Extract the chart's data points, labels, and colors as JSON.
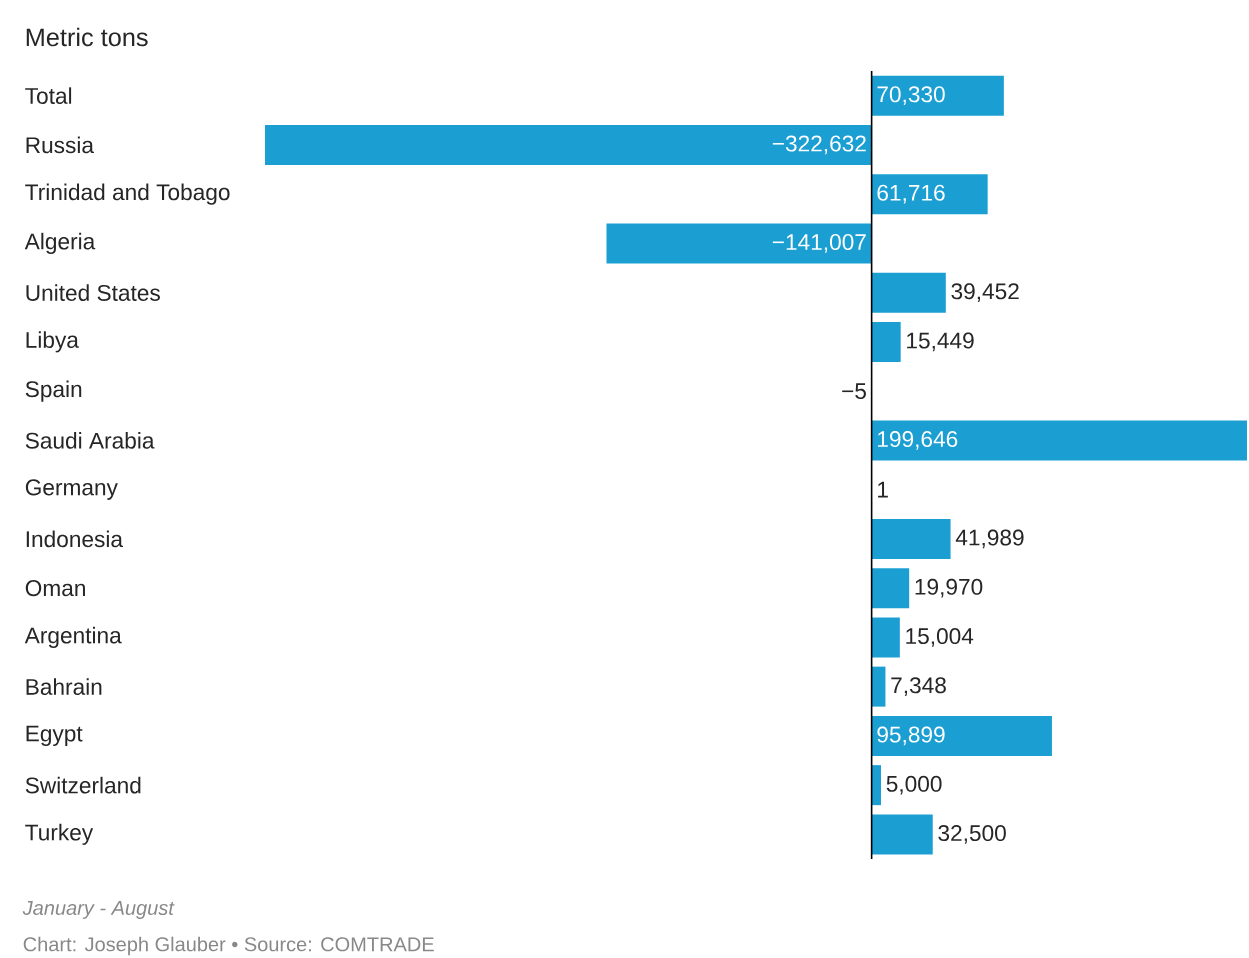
{
  "chart_data": {
    "type": "bar",
    "orientation": "horizontal",
    "title": "Metric tons",
    "categories": [
      "Total",
      "Russia",
      "Trinidad and Tobago",
      "Algeria",
      "United States",
      "Libya",
      "Spain",
      "Saudi Arabia",
      "Germany",
      "Indonesia",
      "Oman",
      "Argentina",
      "Bahrain",
      "Egypt",
      "Switzerland",
      "Turkey"
    ],
    "values": [
      70330,
      -322632,
      61716,
      -141007,
      39452,
      15449,
      -5,
      199646,
      1,
      41989,
      19970,
      15004,
      7348,
      95899,
      5000,
      32500
    ],
    "value_labels": [
      "70,330",
      "−322,632",
      "61,716",
      "−141,007",
      "39,452",
      "15,449",
      "−5",
      "199,646",
      "1",
      "41,989",
      "19,970",
      "15,004",
      "7,348",
      "95,899",
      "5,000",
      "32,500"
    ],
    "color": "#1b9fd3",
    "annotations": [
      "January - August",
      "Chart: Joseph Glauber • Source: COMTRADE"
    ]
  }
}
